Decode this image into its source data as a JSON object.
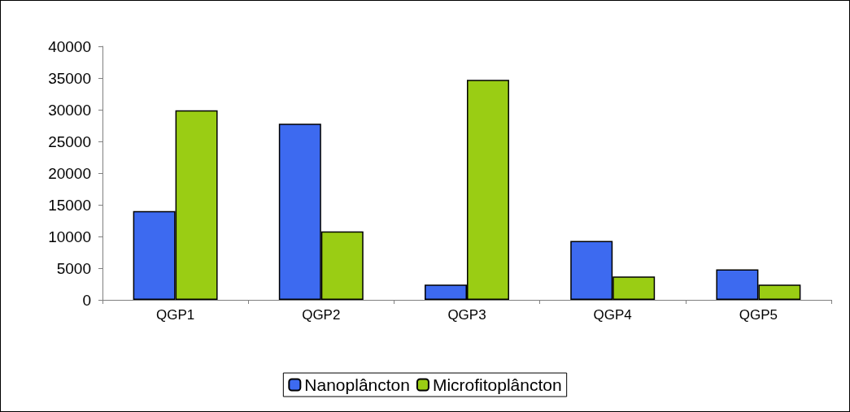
{
  "chart_data": {
    "type": "bar",
    "categories": [
      "QGP1",
      "QGP2",
      "QGP3",
      "QGP4",
      "QGP5"
    ],
    "series": [
      {
        "name": "Nanoplâncton",
        "color": "#3d6af0",
        "values": [
          14000,
          27800,
          2400,
          9300,
          4800
        ]
      },
      {
        "name": "Microfitoplâncton",
        "color": "#9acd14",
        "values": [
          29900,
          10800,
          34700,
          3700,
          2400
        ]
      }
    ],
    "ylim": [
      0,
      40000
    ],
    "yticks": [
      0,
      5000,
      10000,
      15000,
      20000,
      25000,
      30000,
      35000,
      40000
    ],
    "grid": false,
    "legend": "bottom"
  }
}
